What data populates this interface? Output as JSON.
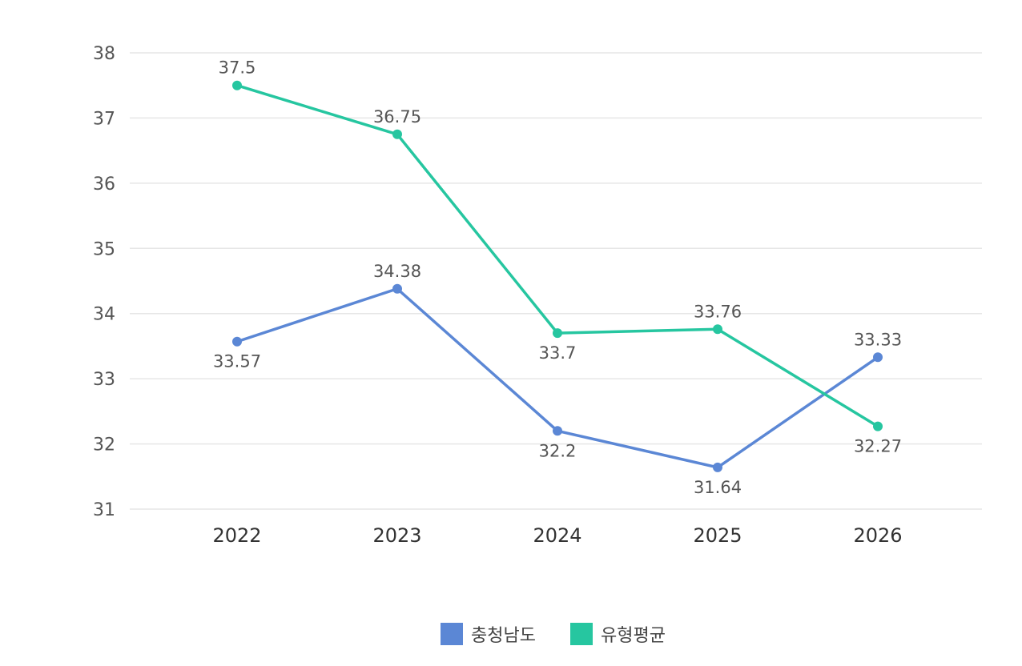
{
  "chart_data": {
    "type": "line",
    "categories": [
      "2022",
      "2023",
      "2024",
      "2025",
      "2026"
    ],
    "series": [
      {
        "name": "충청남도",
        "color": "#5b87d5",
        "values": [
          33.57,
          34.38,
          32.2,
          31.64,
          33.33
        ],
        "label_pos": [
          "below",
          "above",
          "below",
          "below",
          "above"
        ]
      },
      {
        "name": "유형평균",
        "color": "#26c6a0",
        "values": [
          37.5,
          36.75,
          33.7,
          33.76,
          32.27
        ],
        "label_pos": [
          "above",
          "above",
          "below",
          "above",
          "below"
        ]
      }
    ],
    "ylim": [
      31,
      38
    ],
    "yticks": [
      31,
      32,
      33,
      34,
      35,
      36,
      37,
      38
    ],
    "grid": true,
    "legend": "bottom-center",
    "title": "",
    "xlabel": "",
    "ylabel": ""
  }
}
